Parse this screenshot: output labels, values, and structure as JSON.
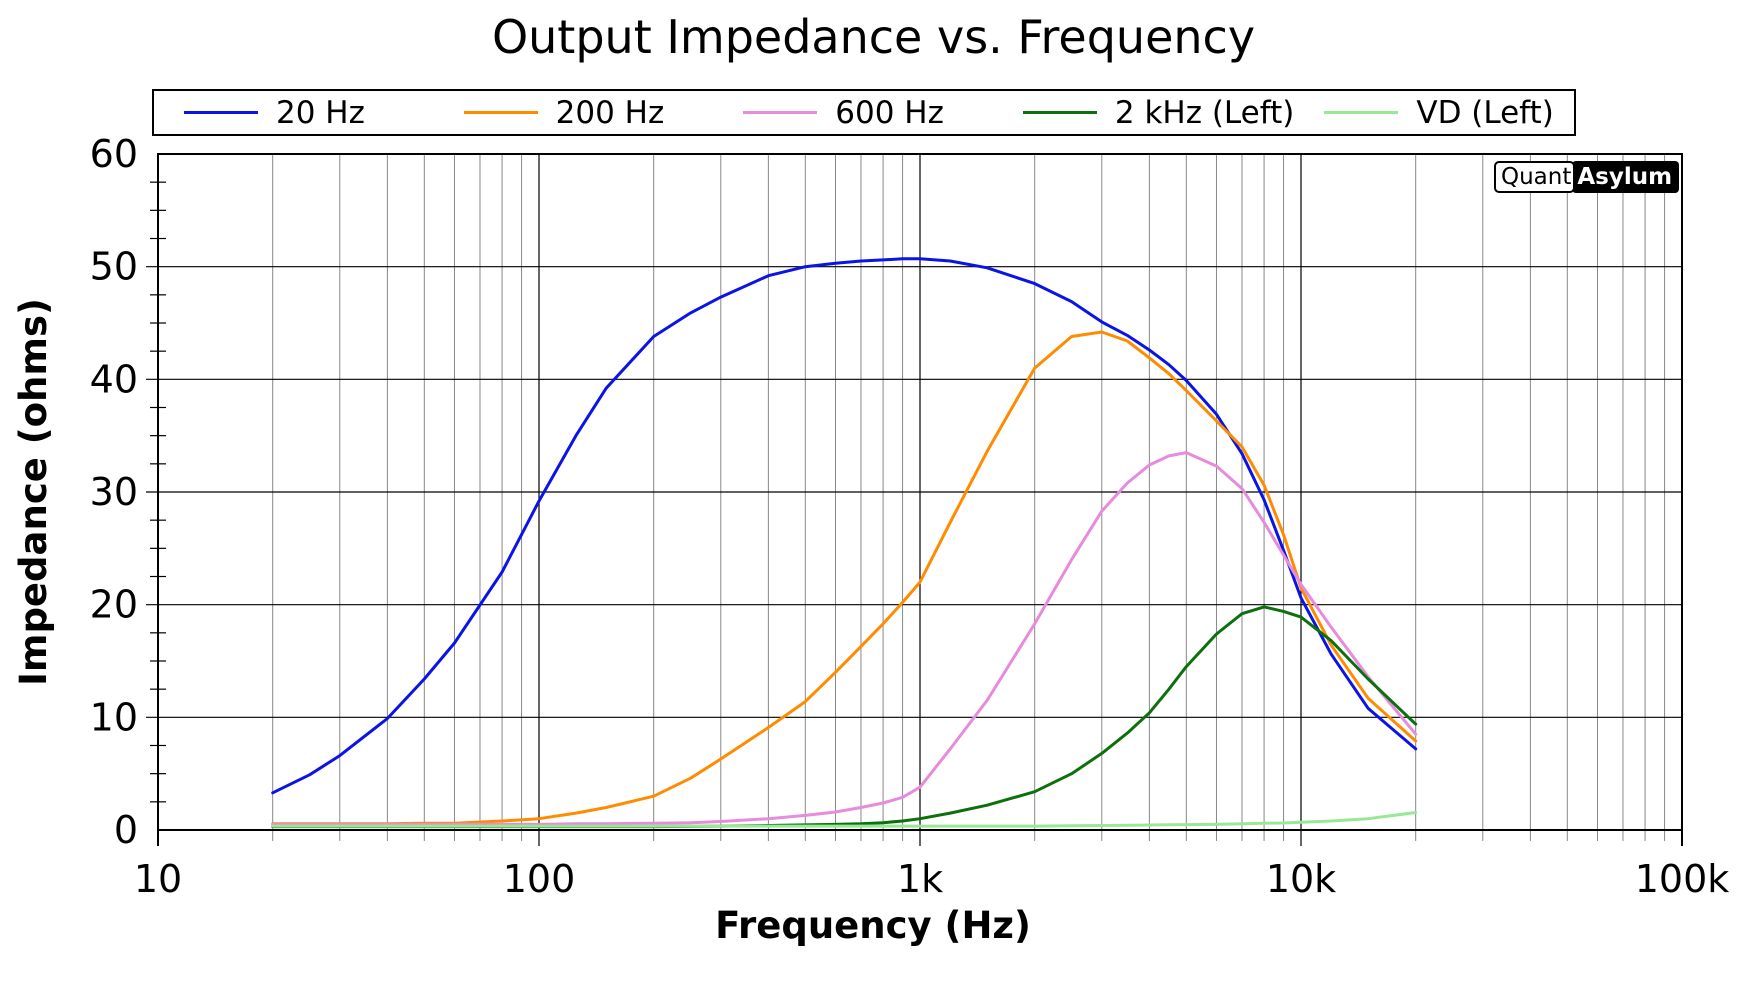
{
  "title": "Output Impedance vs. Frequency",
  "watermark": {
    "left": "Quant",
    "right": "Asylum"
  },
  "chart_data": {
    "type": "line",
    "title": "Output Impedance vs. Frequency",
    "xlabel": "Frequency (Hz)",
    "ylabel": "Impedance (ohms)",
    "x_scale": "log",
    "xlim": [
      10,
      100000
    ],
    "ylim": [
      0,
      60
    ],
    "y_major_step": 10,
    "y_minor_step": 2.5,
    "grid": true,
    "legend_position": "top",
    "x_tick_labels": [
      {
        "value": 10,
        "label": "10"
      },
      {
        "value": 100,
        "label": "100"
      },
      {
        "value": 1000,
        "label": "1k"
      },
      {
        "value": 10000,
        "label": "10k"
      },
      {
        "value": 100000,
        "label": "100k"
      }
    ],
    "y_tick_labels": [
      "0",
      "10",
      "20",
      "30",
      "40",
      "50",
      "60"
    ],
    "x": [
      20,
      25,
      30,
      40,
      50,
      60,
      80,
      100,
      125,
      150,
      200,
      250,
      300,
      400,
      500,
      600,
      700,
      800,
      900,
      1000,
      1200,
      1500,
      2000,
      2500,
      3000,
      3500,
      4000,
      4500,
      5000,
      6000,
      7000,
      8000,
      9000,
      10000,
      12000,
      15000,
      20000
    ],
    "series": [
      {
        "name": "20 Hz",
        "color": "#0a14e6",
        "values": [
          3.3,
          4.9,
          6.6,
          9.9,
          13.4,
          16.6,
          22.9,
          29.2,
          35.0,
          39.2,
          43.8,
          45.9,
          47.3,
          49.2,
          50.0,
          50.3,
          50.5,
          50.6,
          50.7,
          50.7,
          50.5,
          49.9,
          48.5,
          46.9,
          45.1,
          43.9,
          42.6,
          41.3,
          39.9,
          36.9,
          33.4,
          29.3,
          24.8,
          20.6,
          15.6,
          10.8,
          7.2
        ]
      },
      {
        "name": "200 Hz",
        "color": "#ff8c00",
        "values": [
          0.55,
          0.55,
          0.55,
          0.55,
          0.6,
          0.6,
          0.8,
          1.0,
          1.5,
          2.0,
          3.0,
          4.6,
          6.3,
          9.1,
          11.4,
          14.0,
          16.3,
          18.3,
          20.2,
          22.0,
          27.3,
          33.6,
          41.0,
          43.8,
          44.2,
          43.4,
          41.9,
          40.5,
          39.0,
          36.3,
          34.0,
          30.6,
          26.2,
          21.5,
          16.4,
          11.7,
          7.9
        ]
      },
      {
        "name": "600 Hz",
        "color": "#e78bdc",
        "values": [
          0.5,
          0.5,
          0.5,
          0.5,
          0.5,
          0.5,
          0.5,
          0.5,
          0.55,
          0.55,
          0.6,
          0.65,
          0.75,
          1.0,
          1.3,
          1.6,
          2.0,
          2.4,
          2.9,
          3.8,
          7.2,
          11.5,
          18.3,
          24.0,
          28.3,
          30.8,
          32.4,
          33.2,
          33.5,
          32.3,
          30.3,
          27.3,
          24.4,
          21.8,
          18.0,
          13.6,
          8.5
        ]
      },
      {
        "name": "2 kHz (Left)",
        "color": "#0c700c",
        "values": [
          0.3,
          0.3,
          0.3,
          0.3,
          0.3,
          0.3,
          0.3,
          0.3,
          0.3,
          0.3,
          0.3,
          0.32,
          0.35,
          0.4,
          0.45,
          0.5,
          0.55,
          0.65,
          0.8,
          1.0,
          1.5,
          2.2,
          3.4,
          5.0,
          6.8,
          8.6,
          10.4,
          12.5,
          14.5,
          17.4,
          19.2,
          19.8,
          19.4,
          18.9,
          16.8,
          13.4,
          9.4
        ]
      },
      {
        "name": "VD (Left)",
        "color": "#98e898",
        "values": [
          0.35,
          0.35,
          0.35,
          0.35,
          0.35,
          0.35,
          0.35,
          0.35,
          0.35,
          0.35,
          0.35,
          0.35,
          0.35,
          0.35,
          0.35,
          0.35,
          0.35,
          0.35,
          0.35,
          0.35,
          0.35,
          0.35,
          0.35,
          0.38,
          0.4,
          0.42,
          0.44,
          0.46,
          0.48,
          0.5,
          0.55,
          0.6,
          0.62,
          0.68,
          0.8,
          1.0,
          1.55
        ]
      }
    ]
  }
}
